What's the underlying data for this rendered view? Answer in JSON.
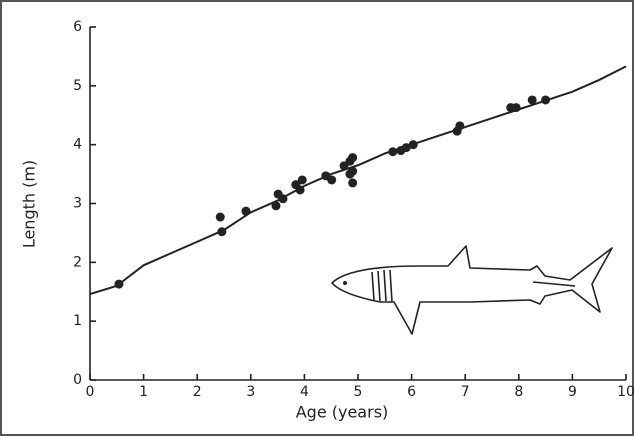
{
  "chart_data": {
    "type": "scatter",
    "x_label": "Age (years)",
    "y_label": "Length (m)",
    "xlim": [
      0,
      10
    ],
    "ylim": [
      0,
      6
    ],
    "xticks": [
      0,
      1,
      2,
      3,
      4,
      5,
      6,
      7,
      8,
      9,
      10
    ],
    "yticks": [
      0,
      1,
      2,
      3,
      4,
      5,
      6
    ],
    "grid": false,
    "series": [
      {
        "type": "scatter",
        "color": "#222",
        "x": [
          0.54,
          2.43,
          2.46,
          2.91,
          3.51,
          3.47,
          3.6,
          3.84,
          3.96,
          3.92,
          4.4,
          4.51,
          4.74,
          4.85,
          4.9,
          4.85,
          4.9,
          4.9,
          5.65,
          5.8,
          5.9,
          6.03,
          6.85,
          6.9,
          7.85,
          7.95,
          8.25,
          8.5
        ],
        "values": [
          1.63,
          2.77,
          2.52,
          2.87,
          3.16,
          2.96,
          3.08,
          3.32,
          3.4,
          3.23,
          3.47,
          3.4,
          3.64,
          3.72,
          3.78,
          3.5,
          3.55,
          3.35,
          3.88,
          3.9,
          3.95,
          4.0,
          4.23,
          4.32,
          4.63,
          4.63,
          4.76,
          4.76
        ]
      },
      {
        "type": "line",
        "color": "#222",
        "x": [
          0,
          0.5,
          1,
          1.5,
          2,
          2.5,
          3,
          3.5,
          4,
          4.5,
          5,
          5.5,
          6,
          6.5,
          7,
          7.5,
          8,
          8.5,
          9,
          9.5,
          10
        ],
        "values": [
          1.46,
          1.6,
          1.95,
          2.15,
          2.35,
          2.55,
          2.85,
          3.05,
          3.3,
          3.5,
          3.65,
          3.85,
          4.0,
          4.15,
          4.3,
          4.45,
          4.6,
          4.75,
          4.9,
          5.1,
          5.33
        ]
      }
    ]
  }
}
